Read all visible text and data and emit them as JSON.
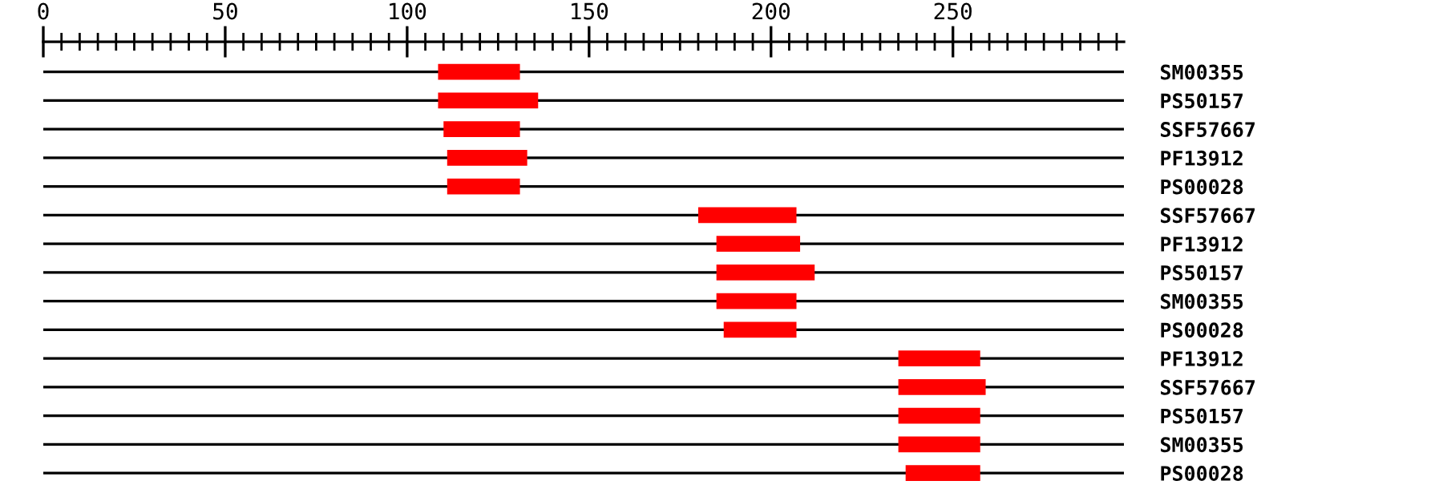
{
  "chart_data": {
    "type": "bar",
    "orientation": "horizontal",
    "grid": "y",
    "color": "#ff0000",
    "categories": [
      "SM00355",
      "PS50157",
      "SSF57667",
      "PF13912",
      "PS00028",
      "SSF57667",
      "PF13912",
      "PS50157",
      "SM00355",
      "PS00028",
      "PF13912",
      "SSF57667",
      "PS50157",
      "SM00355",
      "PS00028"
    ],
    "base": [
      108.5,
      108.5,
      110,
      111,
      111,
      180,
      185,
      185,
      185,
      187,
      235,
      235,
      235,
      235,
      237
    ],
    "values": [
      22.5,
      27.5,
      21,
      22,
      20,
      27,
      23,
      27,
      22,
      20,
      22.5,
      24,
      22.5,
      22.5,
      20.5
    ],
    "xlim": [
      0,
      297
    ],
    "xticks": [
      0,
      {
        "value": 5,
        "label": null
      },
      {
        "value": 10,
        "label": null
      },
      {
        "value": 15,
        "label": null
      },
      {
        "value": 20,
        "label": null
      },
      {
        "value": 25,
        "label": null
      },
      {
        "value": 30,
        "label": null
      },
      {
        "value": 35,
        "label": null
      },
      {
        "value": 40,
        "label": null
      },
      {
        "value": 45,
        "label": null
      },
      50,
      {
        "value": 55,
        "label": null
      },
      {
        "value": 60,
        "label": null
      },
      {
        "value": 65,
        "label": null
      },
      {
        "value": 70,
        "label": null
      },
      {
        "value": 75,
        "label": null
      },
      {
        "value": 80,
        "label": null
      },
      {
        "value": 85,
        "label": null
      },
      {
        "value": 90,
        "label": null
      },
      {
        "value": 95,
        "label": null
      },
      100,
      {
        "value": 105,
        "label": null
      },
      {
        "value": 110,
        "label": null
      },
      {
        "value": 115,
        "label": null
      },
      {
        "value": 120,
        "label": null
      },
      {
        "value": 125,
        "label": null
      },
      {
        "value": 130,
        "label": null
      },
      {
        "value": 135,
        "label": null
      },
      {
        "value": 140,
        "label": null
      },
      {
        "value": 145,
        "label": null
      },
      150,
      {
        "value": 155,
        "label": null
      },
      {
        "value": 160,
        "label": null
      },
      {
        "value": 165,
        "label": null
      },
      {
        "value": 170,
        "label": null
      },
      {
        "value": 175,
        "label": null
      },
      {
        "value": 180,
        "label": null
      },
      {
        "value": 185,
        "label": null
      },
      {
        "value": 190,
        "label": null
      },
      {
        "value": 195,
        "label": null
      },
      200,
      {
        "value": 205,
        "label": null
      },
      {
        "value": 210,
        "label": null
      },
      {
        "value": 215,
        "label": null
      },
      {
        "value": 220,
        "label": null
      },
      {
        "value": 225,
        "label": null
      },
      {
        "value": 230,
        "label": null
      },
      {
        "value": 235,
        "label": null
      },
      {
        "value": 240,
        "label": null
      },
      {
        "value": 245,
        "label": null
      },
      250,
      {
        "value": 255,
        "label": null
      },
      {
        "value": 260,
        "label": null
      },
      {
        "value": 265,
        "label": null
      },
      {
        "value": 270,
        "label": null
      },
      {
        "value": 275,
        "label": null
      },
      {
        "value": 280,
        "label": null
      },
      {
        "value": 285,
        "label": null
      },
      {
        "value": 290,
        "label": null
      },
      {
        "value": 295,
        "label": null
      }
    ]
  }
}
